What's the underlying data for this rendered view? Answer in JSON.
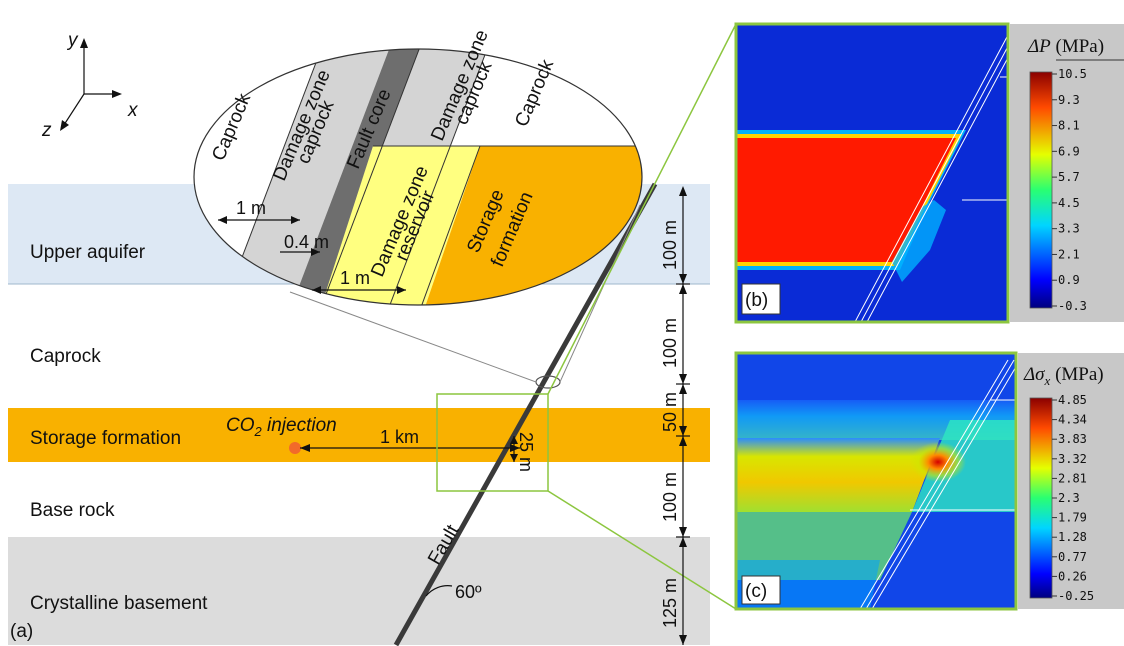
{
  "axes": {
    "y": "y",
    "x": "x",
    "z": "z"
  },
  "layers": {
    "upper_aquifer": "Upper aquifer",
    "caprock": "Caprock",
    "storage_formation": "Storage formation",
    "base_rock": "Base rock",
    "crystalline_basement": "Crystalline basement"
  },
  "injection": {
    "label": "CO",
    "sub": "2",
    "rest": " injection"
  },
  "distances": {
    "to_fault": "1 km",
    "offset": "25 m"
  },
  "thickness": [
    "100 m",
    "100 m",
    "50 m",
    "100 m",
    "125 m"
  ],
  "fault": {
    "label": "Fault",
    "angle": "60º"
  },
  "inset": {
    "caprock_left": "Caprock",
    "damage_zone_caprock_l1": "Damage zone",
    "damage_zone_caprock_l2": "caprock",
    "fault_core": "Fault core",
    "damage_zone_caprock_r1": "Damage zone",
    "damage_zone_caprock_r2": "caprock",
    "caprock_right": "Caprock",
    "damage_zone_reservoir_l1": "Damage zone",
    "damage_zone_reservoir_l2": "reservoir",
    "storage_l1": "Storage",
    "storage_l2": "formation",
    "width_1m_top": "1 m",
    "width_04m": "0.4 m",
    "width_1m_bottom": "1 m"
  },
  "panels": {
    "a": "(a)",
    "b": "(b)",
    "c": "(c)"
  },
  "colorbar_b": {
    "title_sym": "ΔP",
    "title_unit": " (MPa)",
    "ticks": [
      "10.5",
      "9.3",
      "8.1",
      "6.9",
      "5.7",
      "4.5",
      "3.3",
      "2.1",
      "0.9",
      "-0.3"
    ]
  },
  "colorbar_c": {
    "title_sym": "Δσ",
    "title_sub": "x",
    "title_unit": " (MPa)",
    "ticks": [
      "4.85",
      "4.34",
      "3.83",
      "3.32",
      "2.81",
      "2.3",
      "1.79",
      "1.28",
      "0.77",
      "0.26",
      "-0.25"
    ]
  },
  "colors": {
    "aquifer": "#dde8f4",
    "storage": "#f9b100",
    "basement": "#dcdcdc",
    "damage_caprock": "#d4d4d4",
    "fault_core": "#6e6e6e",
    "damage_reservoir": "#ffff80",
    "frame": "#8cc63f",
    "field_low": "#0a2bd6"
  }
}
